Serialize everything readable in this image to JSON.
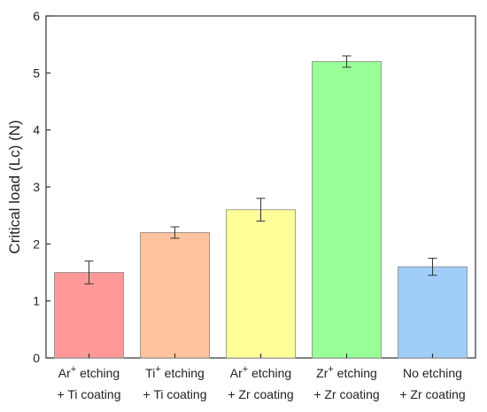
{
  "chart_data": {
    "type": "bar",
    "ylabel": "Critical load (Lc) (N)",
    "ylim": [
      0,
      6
    ],
    "yticks": [
      "0",
      "1",
      "2",
      "3",
      "4",
      "5",
      "6"
    ],
    "categories": [
      {
        "line1": "Ar",
        "sup": "+",
        "line1_rest": " etching",
        "line2": "+ Ti coating"
      },
      {
        "line1": "Ti",
        "sup": "+",
        "line1_rest": " etching",
        "line2": "+ Ti coating"
      },
      {
        "line1": "Ar",
        "sup": "+",
        "line1_rest": " etching",
        "line2": "+ Zr coating"
      },
      {
        "line1": "Zr",
        "sup": "+",
        "line1_rest": " etching",
        "line2": "+ Zr coating"
      },
      {
        "line1": "No etching",
        "sup": "",
        "line1_rest": "",
        "line2": "+ Zr coating"
      }
    ],
    "values": [
      1.5,
      2.2,
      2.6,
      5.2,
      1.6
    ],
    "errors": [
      0.2,
      0.1,
      0.2,
      0.1,
      0.15
    ],
    "colors": [
      "#ff9999",
      "#ffc49e",
      "#ffff99",
      "#99ff99",
      "#9fcdf7"
    ],
    "grid": false
  }
}
